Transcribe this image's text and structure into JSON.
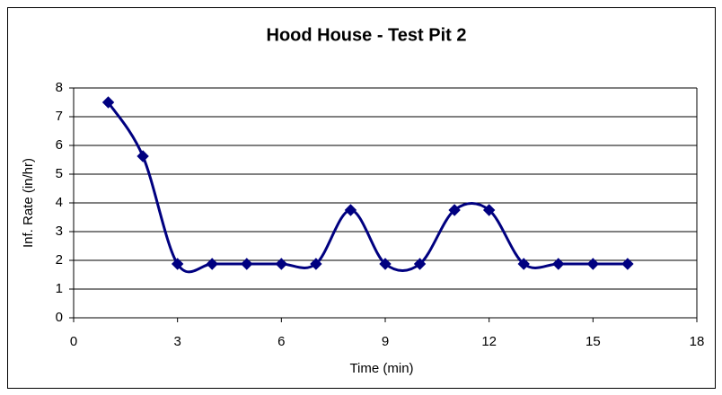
{
  "chart_data": {
    "type": "line",
    "title": "Hood House - Test Pit 2",
    "x_label": "Time (min)",
    "y_label": "Inf. Rate (in/hr)",
    "x": [
      1,
      2,
      3,
      4,
      5,
      6,
      7,
      8,
      9,
      10,
      11,
      12,
      13,
      14,
      15,
      16
    ],
    "values": [
      7.5,
      5.625,
      1.875,
      1.875,
      1.875,
      1.875,
      1.875,
      3.75,
      1.875,
      1.875,
      3.75,
      3.75,
      1.875,
      1.875,
      1.875,
      1.875
    ],
    "color": "#000080",
    "smooth": true,
    "marker": "diamond",
    "xlim": [
      0,
      18
    ],
    "xticks": [
      0,
      3,
      6,
      9,
      12,
      15,
      18
    ],
    "ylim": [
      0,
      8
    ],
    "yticks": [
      0,
      1,
      2,
      3,
      4,
      5,
      6,
      7,
      8
    ],
    "grid": true
  }
}
